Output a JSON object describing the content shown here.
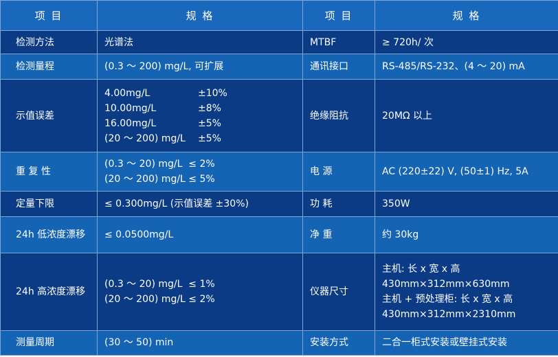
{
  "table": {
    "header": [
      "项 目",
      "规 格",
      "项 目",
      "规 格"
    ],
    "rows": [
      [
        "检测方法",
        "光谱法",
        "MTBF",
        "≥ 720h/ 次"
      ],
      [
        "检测量程",
        "(0.3 ～ 200) mg/L, 可扩展",
        "通讯接口",
        "RS-485/RS-232、(4 ～ 20) mA"
      ],
      [
        "示值误差",
        [
          [
            "4.00mg/L",
            "±10%"
          ],
          [
            "10.00mg/L",
            "±8%"
          ],
          [
            "16.00mg/L",
            "±5%"
          ],
          [
            "(20 ～ 200) mg/L",
            "±5%"
          ]
        ],
        "绝缘阻抗",
        "20MΩ 以上"
      ],
      [
        "重 复 性",
        [
          "(0.3 ～ 20) mg/L  ≤ 2%",
          "(20 ～ 200) mg/L ≤ 5%"
        ],
        "电 源",
        "AC (220±22) V, (50±1) Hz, 5A"
      ],
      [
        "定量下限",
        "≤ 0.300mg/L (示值误差 ±30%)",
        "功 耗",
        "350W"
      ],
      [
        "24h 低浓度漂移",
        "≤ 0.0500mg/L",
        "净 重",
        "约 30kg"
      ],
      [
        "24h 高浓度漂移",
        [
          "(0.3 ～ 20) mg/L  ≤ 1%",
          "(20 ～ 200) mg/L ≤ 2%"
        ],
        "仪器尺寸",
        [
          "主机: 长 x 宽 x 高",
          "430mm×312mm×630mm",
          "主机 + 预处理柜: 长 x 宽 x 高",
          "430mm×312mm×2310mm"
        ]
      ],
      [
        "测量周期",
        "(30 ～ 50) min",
        "安装方式",
        "二合一柜式安装或壁挂式安装"
      ]
    ]
  }
}
